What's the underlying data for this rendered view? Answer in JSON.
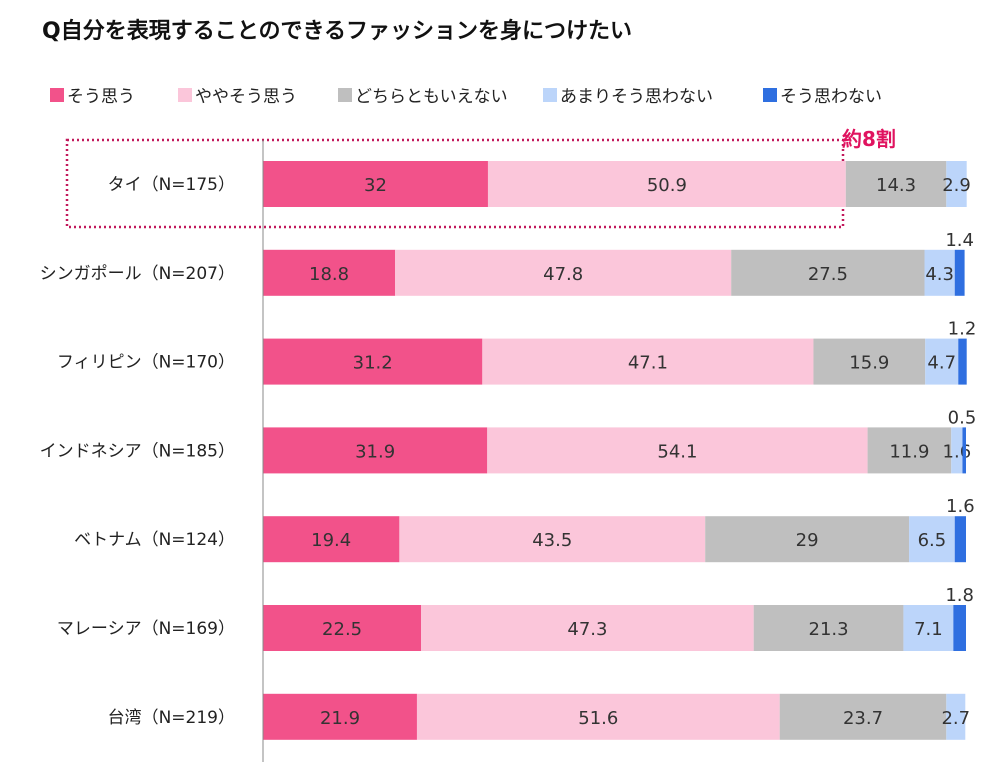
{
  "chart_data": {
    "type": "bar",
    "orientation": "horizontal",
    "stacked": true,
    "title": "Q自分を表現することのできるファッションを身につけたい",
    "categories": [
      "タイ（N=175）",
      "シンガポール（N=207）",
      "フィリピン（N=170）",
      "インドネシア（N=185）",
      "ベトナム（N=124）",
      "マレーシア（N=169）",
      "台湾（N=219）"
    ],
    "series": [
      {
        "name": "そう思う",
        "color": "#f2528a",
        "values": [
          32,
          18.8,
          31.2,
          31.9,
          19.4,
          22.5,
          21.9
        ]
      },
      {
        "name": "ややそう思う",
        "color": "#fbc6da",
        "values": [
          50.9,
          47.8,
          47.1,
          54.1,
          43.5,
          47.3,
          51.6
        ]
      },
      {
        "name": "どちらともいえない",
        "color": "#bfbfbf",
        "values": [
          14.3,
          27.5,
          15.9,
          11.9,
          29,
          21.3,
          23.7
        ]
      },
      {
        "name": "あまりそう思わない",
        "color": "#bcd5fa",
        "values": [
          2.9,
          4.3,
          4.7,
          1.6,
          6.5,
          7.1,
          2.7
        ]
      },
      {
        "name": "そう思わない",
        "color": "#2f6fe0",
        "values": [
          null,
          1.4,
          1.2,
          0.5,
          1.6,
          1.8,
          null
        ]
      }
    ],
    "xlim": [
      0,
      100
    ],
    "legend_position": "top",
    "grid": false,
    "annotation": {
      "text": "約8割",
      "color": "#e0135f",
      "highlight_category": "タイ（N=175）"
    }
  }
}
